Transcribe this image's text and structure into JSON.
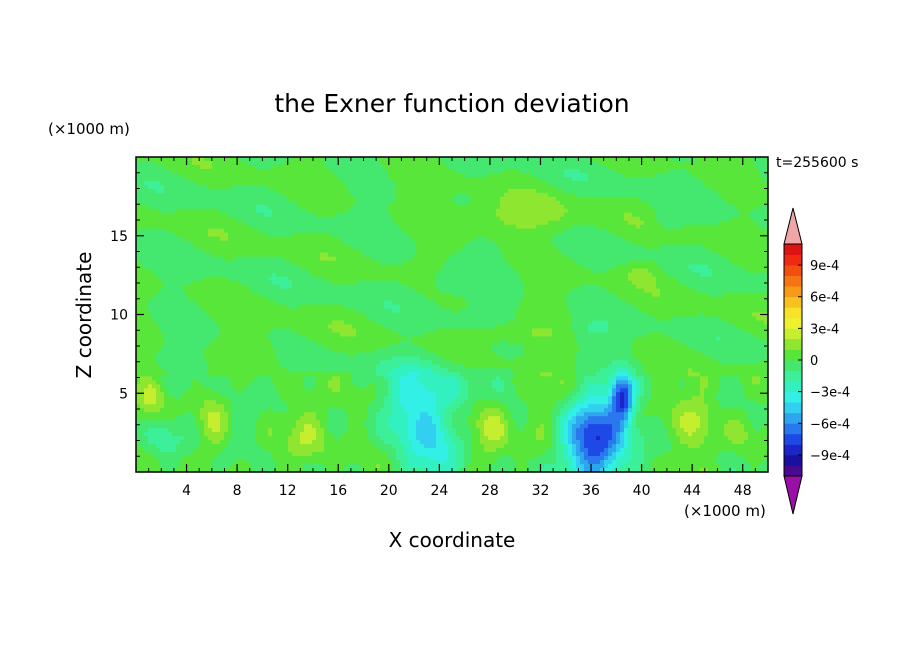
{
  "chart_data": {
    "type": "heatmap",
    "title": "the Exner function deviation",
    "xlabel": "X coordinate",
    "ylabel": "Z coordinate",
    "x_unit": "(×1000 m)",
    "y_unit": "(×1000 m)",
    "time_label": "t=255600 s",
    "x_ticks": [
      4,
      8,
      12,
      16,
      20,
      24,
      28,
      32,
      36,
      40,
      44,
      48
    ],
    "y_ticks": [
      5,
      10,
      15
    ],
    "xlim": [
      0,
      50
    ],
    "ylim": [
      0,
      20
    ],
    "colorbar": {
      "tick_labels": [
        "9e-4",
        "6e-4",
        "3e-4",
        "0",
        "−3e-4",
        "−6e-4",
        "−9e-4"
      ],
      "tick_values": [
        0.0009,
        0.0006,
        0.0003,
        0,
        -0.0003,
        -0.0006,
        -0.0009
      ],
      "levels_min": -0.0011,
      "levels_step": 0.0001,
      "colors": [
        "#4a0a8f",
        "#1a0f9e",
        "#1d25c8",
        "#1e49e6",
        "#2a78ee",
        "#2da6ee",
        "#32cff0",
        "#33f0e6",
        "#33f0c0",
        "#3cf09a",
        "#44e86e",
        "#58e63a",
        "#8ee631",
        "#c5ee2e",
        "#eef22e",
        "#f7e22a",
        "#f7c21e",
        "#f79a17",
        "#f57512",
        "#f24e10",
        "#ef2a12",
        "#dd1512"
      ],
      "under_color": "#9b0fa8",
      "over_color": "#f0a6a6"
    },
    "features": [
      {
        "x": 36.2,
        "z": 2.0,
        "rx": 2.4,
        "rz": 2.8,
        "amp": -0.00085
      },
      {
        "x": 38.5,
        "z": 4.8,
        "rx": 0.9,
        "rz": 1.4,
        "amp": -0.00075
      },
      {
        "x": 23.5,
        "z": 1.8,
        "rx": 2.6,
        "rz": 4.2,
        "amp": -0.0003
      },
      {
        "x": 21.5,
        "z": 4.5,
        "rx": 2.5,
        "rz": 2.4,
        "amp": -0.00022
      },
      {
        "x": 2.2,
        "z": 2.0,
        "rx": 1.5,
        "rz": 1.6,
        "amp": -0.00018
      },
      {
        "x": 9.0,
        "z": 3.5,
        "rx": 1.4,
        "rz": 2.0,
        "amp": -0.00012
      },
      {
        "x": 13.5,
        "z": 2.5,
        "rx": 1.8,
        "rz": 2.5,
        "amp": 0.0002
      },
      {
        "x": 6.0,
        "z": 3.0,
        "rx": 1.3,
        "rz": 2.5,
        "amp": 0.0002
      },
      {
        "x": 28.0,
        "z": 3.0,
        "rx": 1.4,
        "rz": 2.3,
        "amp": 0.0002
      },
      {
        "x": 32.0,
        "z": 3.5,
        "rx": 2.0,
        "rz": 3.5,
        "amp": 0.00012
      },
      {
        "x": 44.5,
        "z": 3.5,
        "rx": 1.7,
        "rz": 2.8,
        "amp": 0.00016
      },
      {
        "x": 48.0,
        "z": 2.5,
        "rx": 1.2,
        "rz": 2.0,
        "amp": 0.00012
      },
      {
        "x": 1.2,
        "z": 4.5,
        "rx": 1.0,
        "rz": 1.4,
        "amp": 0.00016
      },
      {
        "x": 30.0,
        "z": 16.2,
        "rx": 4.5,
        "rz": 1.2,
        "amp": 0.00016
      },
      {
        "x": 30.0,
        "z": 8.8,
        "rx": 3.5,
        "rz": 0.7,
        "amp": 0.00012
      },
      {
        "x": 40.0,
        "z": 12.7,
        "rx": 1.5,
        "rz": 0.7,
        "amp": 0.0001
      },
      {
        "x": 11.0,
        "z": 8.0,
        "rx": 4.0,
        "rz": 1.0,
        "amp": 6e-05
      },
      {
        "x": 25.0,
        "z": 12.0,
        "rx": 2.5,
        "rz": 1.0,
        "amp": -0.0001
      },
      {
        "x": 36.0,
        "z": 9.0,
        "rx": 1.8,
        "rz": 0.8,
        "amp": -0.0001
      },
      {
        "x": 42.0,
        "z": 16.0,
        "rx": 1.2,
        "rz": 0.8,
        "amp": -0.0001
      },
      {
        "x": 27.0,
        "z": 5.5,
        "rx": 3.0,
        "rz": 1.2,
        "amp": -0.00012
      }
    ]
  }
}
